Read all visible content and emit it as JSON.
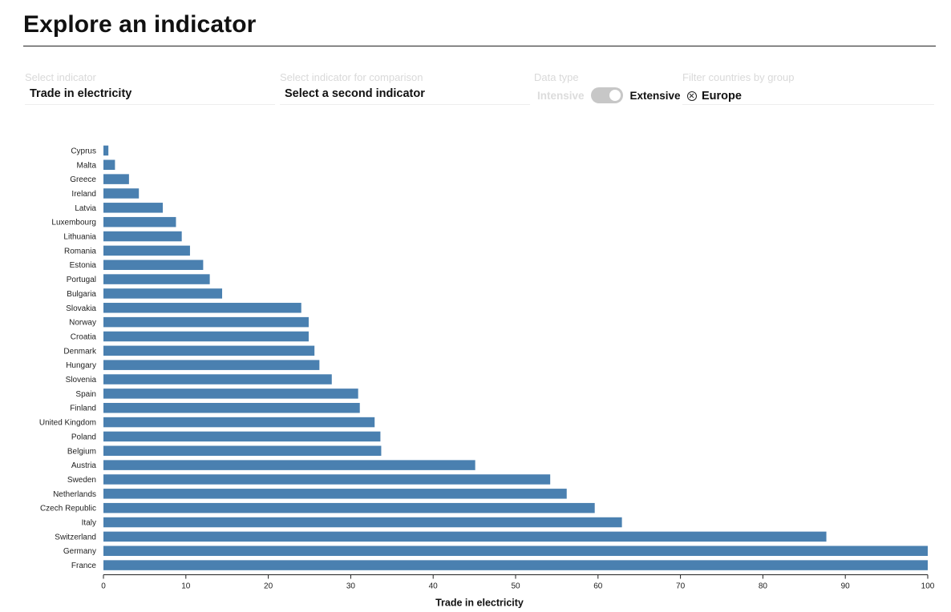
{
  "header": {
    "title": "Explore an indicator"
  },
  "controls": {
    "indicator": {
      "label": "Select indicator",
      "value": "Trade in electricity"
    },
    "comparison": {
      "label": "Select indicator for comparison",
      "value": "Select a second indicator"
    },
    "data_type": {
      "label": "Data type",
      "off_label": "Intensive",
      "on_label": "Extensive",
      "state": "Extensive"
    },
    "filter": {
      "label": "Filter countries by group",
      "value": "Europe"
    }
  },
  "colors": {
    "bar": "#4a80b0",
    "axis": "#222222"
  },
  "chart_data": {
    "type": "bar",
    "orientation": "horizontal",
    "categories": [
      "Cyprus",
      "Malta",
      "Greece",
      "Ireland",
      "Latvia",
      "Luxembourg",
      "Lithuania",
      "Romania",
      "Estonia",
      "Portugal",
      "Bulgaria",
      "Slovakia",
      "Norway",
      "Croatia",
      "Denmark",
      "Hungary",
      "Slovenia",
      "Spain",
      "Finland",
      "United Kingdom",
      "Poland",
      "Belgium",
      "Austria",
      "Sweden",
      "Netherlands",
      "Czech Republic",
      "Italy",
      "Switzerland",
      "Germany",
      "France"
    ],
    "values": [
      0.6,
      1.4,
      3.1,
      4.3,
      7.2,
      8.8,
      9.5,
      10.5,
      12.1,
      12.9,
      14.4,
      24.0,
      24.9,
      24.9,
      25.6,
      26.2,
      27.7,
      30.9,
      31.1,
      32.9,
      33.6,
      33.7,
      45.1,
      54.2,
      56.2,
      59.6,
      62.9,
      87.7,
      100,
      100
    ],
    "xlabel": "Trade in electricity",
    "xlim": [
      0,
      100
    ],
    "xticks": [
      "0",
      "10",
      "20",
      "30",
      "40",
      "50",
      "60",
      "70",
      "80",
      "90",
      "100"
    ],
    "grid": false
  }
}
